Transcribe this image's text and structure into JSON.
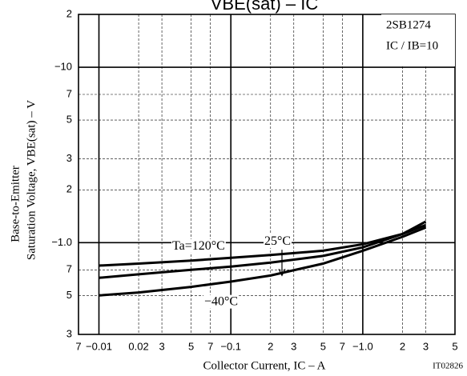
{
  "chart_data": {
    "type": "line",
    "title": "VBE(sat) – IC",
    "x_label": "Collector Current, IC – A",
    "y_label": [
      "Base-to-Emitter",
      "Saturation Voltage, VBE(sat) – V"
    ],
    "annotations": [
      "2SB1274",
      "IC / IB=10",
      "IT02826"
    ],
    "x": [
      0.01,
      0.02,
      0.05,
      0.1,
      0.2,
      0.5,
      1,
      2,
      3
    ],
    "series": [
      {
        "name": "Ta=120°C",
        "color": "#000000",
        "values": [
          0.74,
          0.76,
          0.79,
          0.82,
          0.85,
          0.9,
          0.98,
          1.12,
          1.26
        ]
      },
      {
        "name": "25°C",
        "color": "#000000",
        "values": [
          0.63,
          0.66,
          0.7,
          0.73,
          0.77,
          0.84,
          0.94,
          1.12,
          1.32
        ]
      },
      {
        "name": "−40°C",
        "color": "#000000",
        "values": [
          0.5,
          0.52,
          0.56,
          0.6,
          0.65,
          0.76,
          0.9,
          1.08,
          1.22
        ]
      }
    ],
    "xlim": [
      0.007,
      5
    ],
    "ylim": [
      0.3,
      20
    ],
    "log_x": true,
    "log_y": true,
    "grid": true,
    "xticks": [
      {
        "value": 0.007,
        "label": "7"
      },
      {
        "value": 0.01,
        "label": "−0.01"
      },
      0.02,
      {
        "value": 0.02,
        "label": "2"
      },
      {
        "value": 0.03,
        "label": "3"
      },
      {
        "value": 0.05,
        "label": "5"
      },
      {
        "value": 0.07,
        "label": "7"
      },
      {
        "value": 0.1,
        "label": "−0.1"
      },
      {
        "value": 0.2,
        "label": "2"
      },
      {
        "value": 0.3,
        "label": "3"
      },
      {
        "value": 0.5,
        "label": "5"
      },
      {
        "value": 0.7,
        "label": "7"
      },
      {
        "value": 1,
        "label": "−1.0"
      },
      2,
      3,
      5
    ],
    "yticks": [
      {
        "value": 20,
        "label": "2"
      },
      {
        "value": 10,
        "label": "−10"
      },
      7,
      5,
      3,
      2,
      {
        "value": 1,
        "label": "−1.0"
      },
      {
        "value": 0.7,
        "label": "7"
      },
      {
        "value": 0.5,
        "label": "5"
      },
      {
        "value": 0.3,
        "label": "3"
      }
    ]
  }
}
